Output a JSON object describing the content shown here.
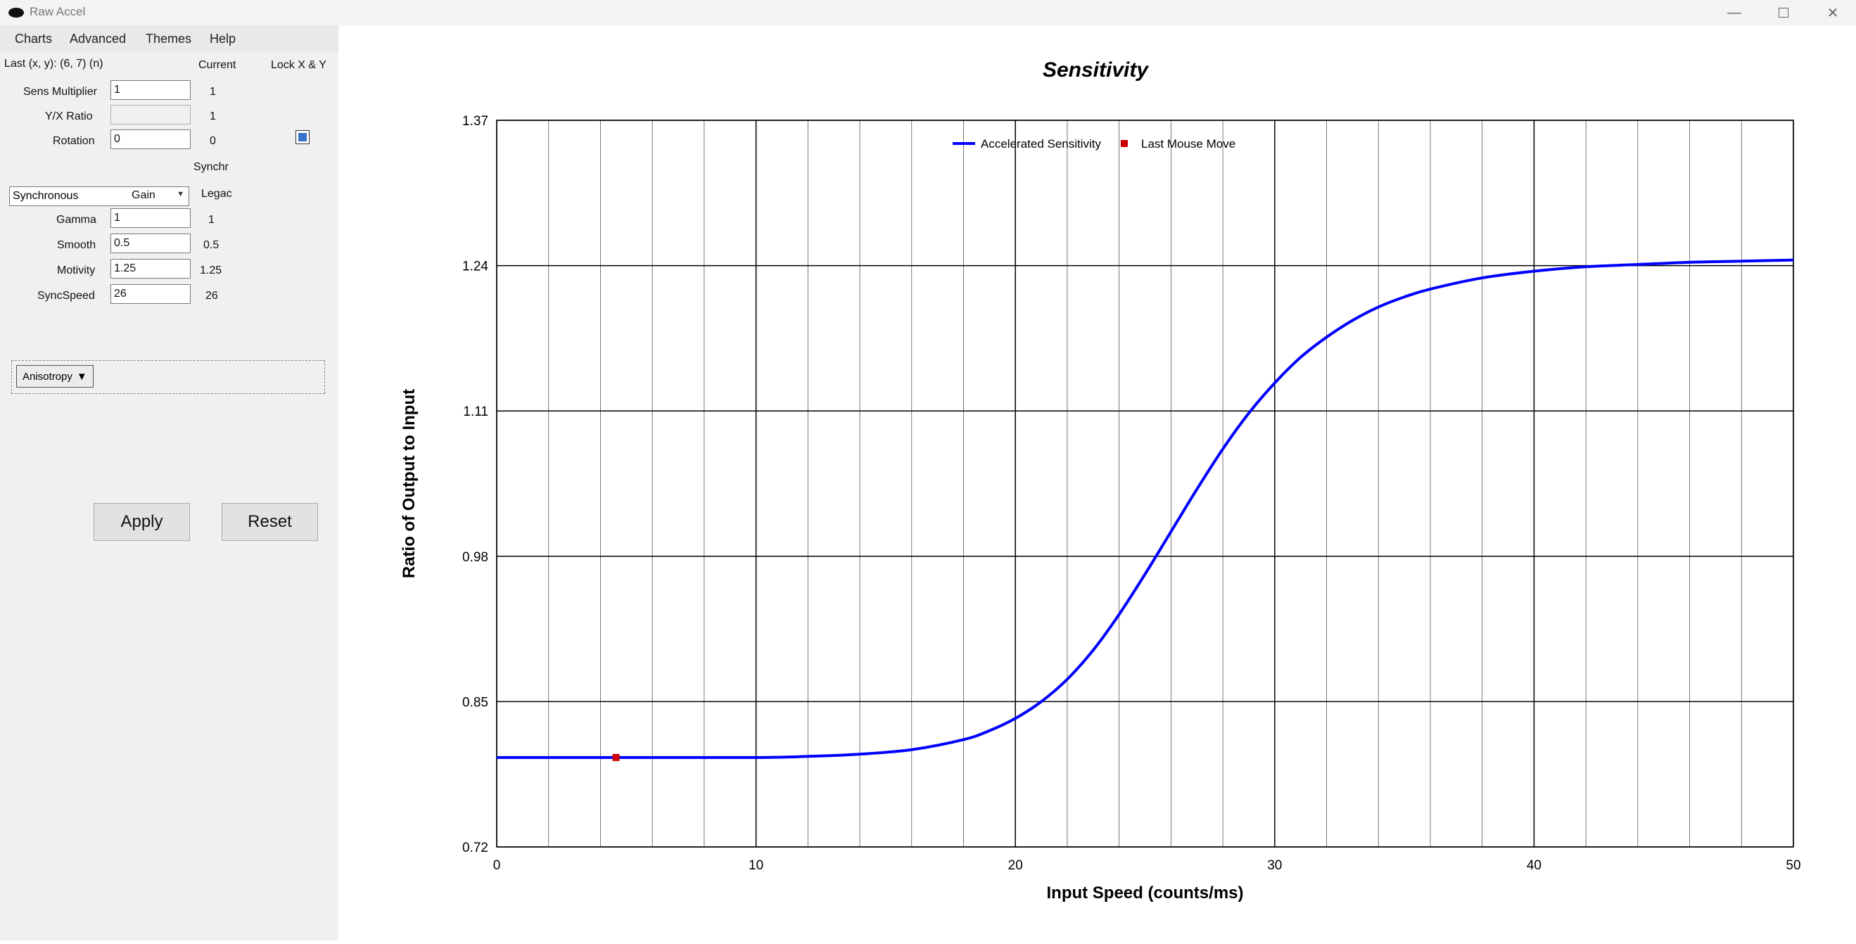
{
  "window": {
    "title": "Raw Accel"
  },
  "menu": {
    "items": [
      "Charts",
      "Advanced",
      "Themes",
      "Help"
    ]
  },
  "panel": {
    "last_label": "Last (x, y): (6, 7) (n)",
    "current_header": "Current",
    "lock_label": "Lock X & Y",
    "sens_label": "Sens Multiplier",
    "sens_value": "1",
    "sens_current": "1",
    "yx_label": "Y/X Ratio",
    "yx_value": "",
    "yx_current": "1",
    "rotation_label": "Rotation",
    "rotation_value": "0",
    "rotation_current": "0",
    "mode_selected": "Synchronous",
    "mode_current": "Synchr",
    "gain_label": "Gain",
    "gain_current": "Legac",
    "gamma_label": "Gamma",
    "gamma_value": "1",
    "gamma_current": "1",
    "smooth_label": "Smooth",
    "smooth_value": "0.5",
    "smooth_current": "0.5",
    "motivity_label": "Motivity",
    "motivity_value": "1.25",
    "motivity_current": "1.25",
    "syncspeed_label": "SyncSpeed",
    "syncspeed_value": "26",
    "syncspeed_current": "26",
    "anisotropy_label": "Anisotropy",
    "apply_label": "Apply",
    "reset_label": "Reset"
  },
  "chart_data": {
    "type": "line",
    "title": "Sensitivity",
    "xlabel": "Input Speed (counts/ms)",
    "ylabel": "Ratio of Output to Input",
    "xlim": [
      0,
      50
    ],
    "ylim": [
      0.72,
      1.37
    ],
    "xticks": [
      "0",
      "10",
      "20",
      "30",
      "40",
      "50"
    ],
    "yticks": [
      "0.72",
      "0.85",
      "0.98",
      "1.11",
      "1.24",
      "1.37"
    ],
    "grid": true,
    "legend_position": "top",
    "series": [
      {
        "name": "Accelerated Sensitivity",
        "color": "#0000ff",
        "x": [
          0,
          5,
          10,
          12,
          14,
          16,
          18,
          19,
          20,
          21,
          22,
          23,
          24,
          25,
          26,
          27,
          28,
          29,
          30,
          31,
          32,
          33,
          34,
          35,
          36,
          38,
          40,
          42,
          44,
          46,
          48,
          50
        ],
        "y": [
          0.8,
          0.8,
          0.8,
          0.801,
          0.803,
          0.807,
          0.816,
          0.824,
          0.835,
          0.85,
          0.87,
          0.896,
          0.928,
          0.964,
          1.002,
          1.04,
          1.076,
          1.108,
          1.135,
          1.158,
          1.176,
          1.191,
          1.203,
          1.212,
          1.219,
          1.229,
          1.235,
          1.239,
          1.241,
          1.243,
          1.244,
          1.245
        ]
      },
      {
        "name": "Last Mouse Move",
        "color": "#cc0000",
        "x": [
          4.6
        ],
        "y": [
          0.8
        ]
      }
    ]
  }
}
